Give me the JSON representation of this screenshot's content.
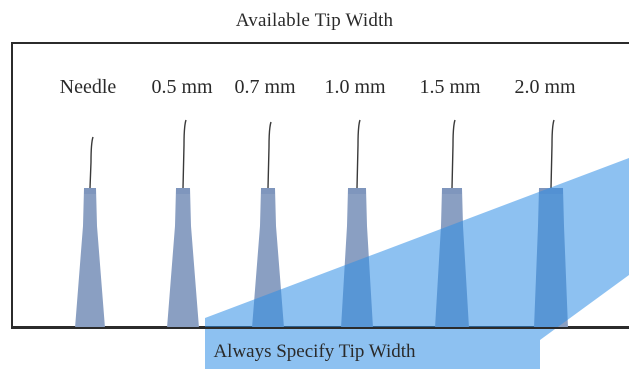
{
  "header": {
    "title": "Available Tip Width"
  },
  "tips": [
    {
      "label": "Needle"
    },
    {
      "label": "0.5 mm"
    },
    {
      "label": "0.7 mm"
    },
    {
      "label": "1.0 mm"
    },
    {
      "label": "1.5 mm"
    },
    {
      "label": "2.0 mm"
    }
  ],
  "footer": {
    "caption": "Always Specify Tip Width"
  },
  "colors": {
    "tip_fill": "#8a9fc2",
    "tip_top": "#7f96bd",
    "highlight_band": "#2f8ee6",
    "frame": "#2b2b2b",
    "wire": "#3a3a3a"
  }
}
